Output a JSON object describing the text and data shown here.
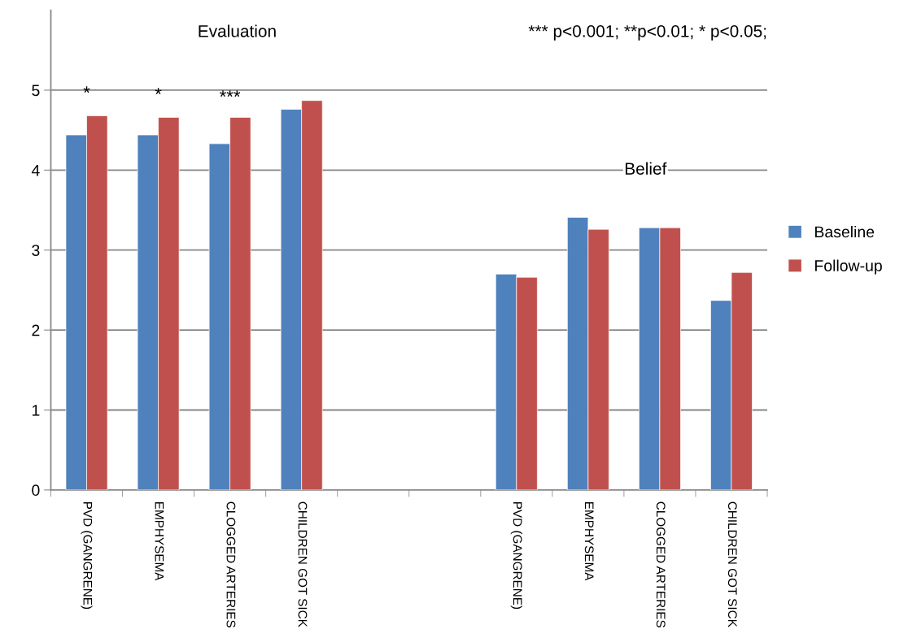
{
  "chart_data": {
    "type": "bar",
    "categories": [
      "PVD (GANGRENE)",
      "EMPHYSEMA",
      "CLOGGED ARTERIES",
      "CHILDREN GOT SICK",
      null,
      null,
      "PVD (GANGRENE)",
      "EMPHYSEMA",
      "CLOGGED ARTERIES",
      "CHILDREN GOT SICK"
    ],
    "series": [
      {
        "name": "Baseline",
        "color": "#4f81bd",
        "values": [
          4.44,
          4.44,
          4.33,
          4.76,
          null,
          null,
          2.7,
          3.41,
          3.28,
          2.37
        ]
      },
      {
        "name": "Follow-up",
        "color": "#c0504d",
        "values": [
          4.68,
          4.66,
          4.66,
          4.87,
          null,
          null,
          2.66,
          3.26,
          3.28,
          2.72
        ]
      }
    ],
    "ylim": [
      0,
      6
    ],
    "yticks": [
      0,
      1,
      2,
      3,
      4,
      5
    ],
    "grid": "y",
    "legend": "right",
    "annotations": [
      "Evaluation",
      "Belief",
      "*** p<0.001; **p<0.01; * p<0.05;",
      "*",
      "*",
      "***"
    ]
  }
}
